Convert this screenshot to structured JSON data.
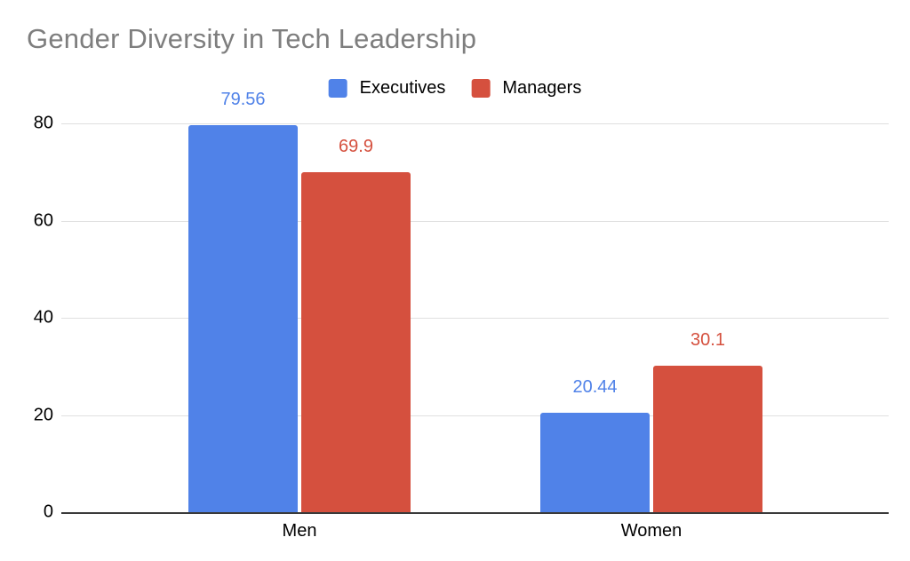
{
  "chart_data": {
    "type": "bar",
    "title": "Gender Diversity in Tech Leadership",
    "categories": [
      "Men",
      "Women"
    ],
    "series": [
      {
        "name": "Executives",
        "color": "#5082E8",
        "values": [
          79.56,
          20.44
        ]
      },
      {
        "name": "Managers",
        "color": "#D5503E",
        "values": [
          69.9,
          30.1
        ]
      }
    ],
    "xlabel": "",
    "ylabel": "",
    "ylim": [
      0,
      80
    ],
    "yticks": [
      80,
      60,
      40,
      20,
      0
    ],
    "grid": true,
    "legend_position": "top-center",
    "value_labels_shown": true,
    "colors": {
      "title_text": "#7E7E7E",
      "axis_text": "#000000",
      "gridline": "#E0E0E0",
      "axis_line": "#3A3A3A",
      "background": "#FFFFFF"
    }
  }
}
